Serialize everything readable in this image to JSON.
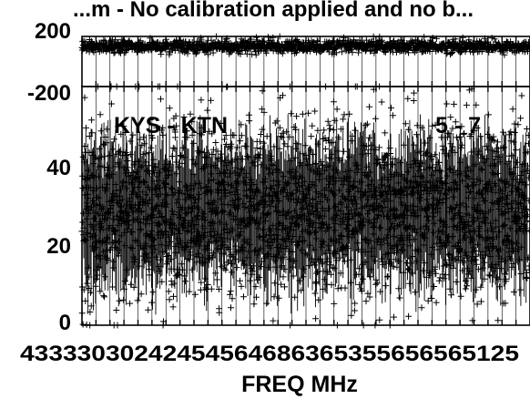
{
  "chart_data": {
    "type": "scatter",
    "title": "...m - No calibration applied and no b...",
    "xlabel": "FREQ MHz",
    "baseline_label": "KYS - KTN",
    "channel_label": "5 - 7",
    "x_range_mhz": [
      4330,
      4346
    ],
    "x_tick_labels": [
      "4330",
      "4332",
      "4334",
      "4336",
      "4338",
      "4340",
      "4342",
      "4344",
      "4346"
    ],
    "x_tick_row_text": "43333030242454564686365355656565125",
    "panels": [
      {
        "name": "phase",
        "ylim": [
          -200,
          200
        ],
        "y_tick_labels": [
          "200",
          "-200"
        ],
        "points_per_panel": 1400,
        "band_center": 120,
        "band_spread": 25
      },
      {
        "name": "amplitude",
        "ylim": [
          0,
          50
        ],
        "y_tick_labels": [
          "40",
          "20",
          "0"
        ],
        "points_per_panel": 2600,
        "band_center": 24,
        "band_spread": 9
      }
    ],
    "grid": true,
    "legend": "none",
    "marker": "+",
    "color": "#000000"
  }
}
